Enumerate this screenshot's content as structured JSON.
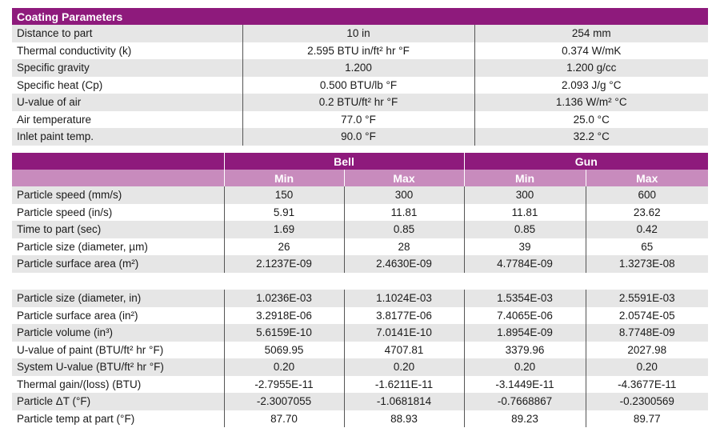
{
  "coating": {
    "title": "Coating Parameters",
    "rows": [
      {
        "label": "Distance to part",
        "v1": "10 in",
        "v2": "254 mm"
      },
      {
        "label": "Thermal conductivity (k)",
        "v1": "2.595 BTU in/ft² hr °F",
        "v2": "0.374 W/mK"
      },
      {
        "label": "Specific gravity",
        "v1": "1.200",
        "v2": "1.200 g/cc"
      },
      {
        "label": "Specific heat (Cp)",
        "v1": "0.500 BTU/lb °F",
        "v2": "2.093 J/g °C"
      },
      {
        "label": "U-value of air",
        "v1": "0.2 BTU/ft² hr °F",
        "v2": "1.136 W/m² °C"
      },
      {
        "label": "Air temperature",
        "v1": "77.0 °F",
        "v2": "25.0 °C"
      },
      {
        "label": "Inlet paint temp.",
        "v1": "90.0 °F",
        "v2": "32.2 °C"
      }
    ]
  },
  "comparison": {
    "group1": "Bell",
    "group2": "Gun",
    "min_label": "Min",
    "max_label": "Max",
    "rows_a": [
      {
        "label": "Particle speed (mm/s)",
        "values": [
          "150",
          "300",
          "300",
          "600"
        ]
      },
      {
        "label": "Particle speed (in/s)",
        "values": [
          "5.91",
          "11.81",
          "11.81",
          "23.62"
        ]
      },
      {
        "label": "Time to part (sec)",
        "values": [
          "1.69",
          "0.85",
          "0.85",
          "0.42"
        ]
      },
      {
        "label": "Particle size (diameter, µm)",
        "values": [
          "26",
          "28",
          "39",
          "65"
        ]
      },
      {
        "label": "Particle surface area (m²)",
        "values": [
          "2.1237E-09",
          "2.4630E-09",
          "4.7784E-09",
          "1.3273E-08"
        ]
      }
    ],
    "rows_b": [
      {
        "label": "Particle size (diameter, in)",
        "values": [
          "1.0236E-03",
          "1.1024E-03",
          "1.5354E-03",
          "2.5591E-03"
        ]
      },
      {
        "label": "Particle surface area (in²)",
        "values": [
          "3.2918E-06",
          "3.8177E-06",
          "7.4065E-06",
          "2.0574E-05"
        ]
      },
      {
        "label": "Particle volume (in³)",
        "values": [
          "5.6159E-10",
          "7.0141E-10",
          "1.8954E-09",
          "8.7748E-09"
        ]
      },
      {
        "label": "U-value of paint (BTU/ft² hr °F)",
        "values": [
          "5069.95",
          "4707.81",
          "3379.96",
          "2027.98"
        ]
      },
      {
        "label": "System U-value (BTU/ft² hr °F)",
        "values": [
          "0.20",
          "0.20",
          "0.20",
          "0.20"
        ]
      },
      {
        "label": "Thermal gain/(loss) (BTU)",
        "values": [
          "-2.7955E-11",
          "-1.6211E-11",
          "-3.1449E-11",
          "-4.3677E-11"
        ]
      },
      {
        "label": "Particle ΔT (°F)",
        "values": [
          "-2.3007055",
          "-1.0681814",
          "-0.7668867",
          "-0.2300569"
        ]
      },
      {
        "label": "Particle temp at part (°F)",
        "values": [
          "87.70",
          "88.93",
          "89.23",
          "89.77"
        ]
      }
    ]
  }
}
